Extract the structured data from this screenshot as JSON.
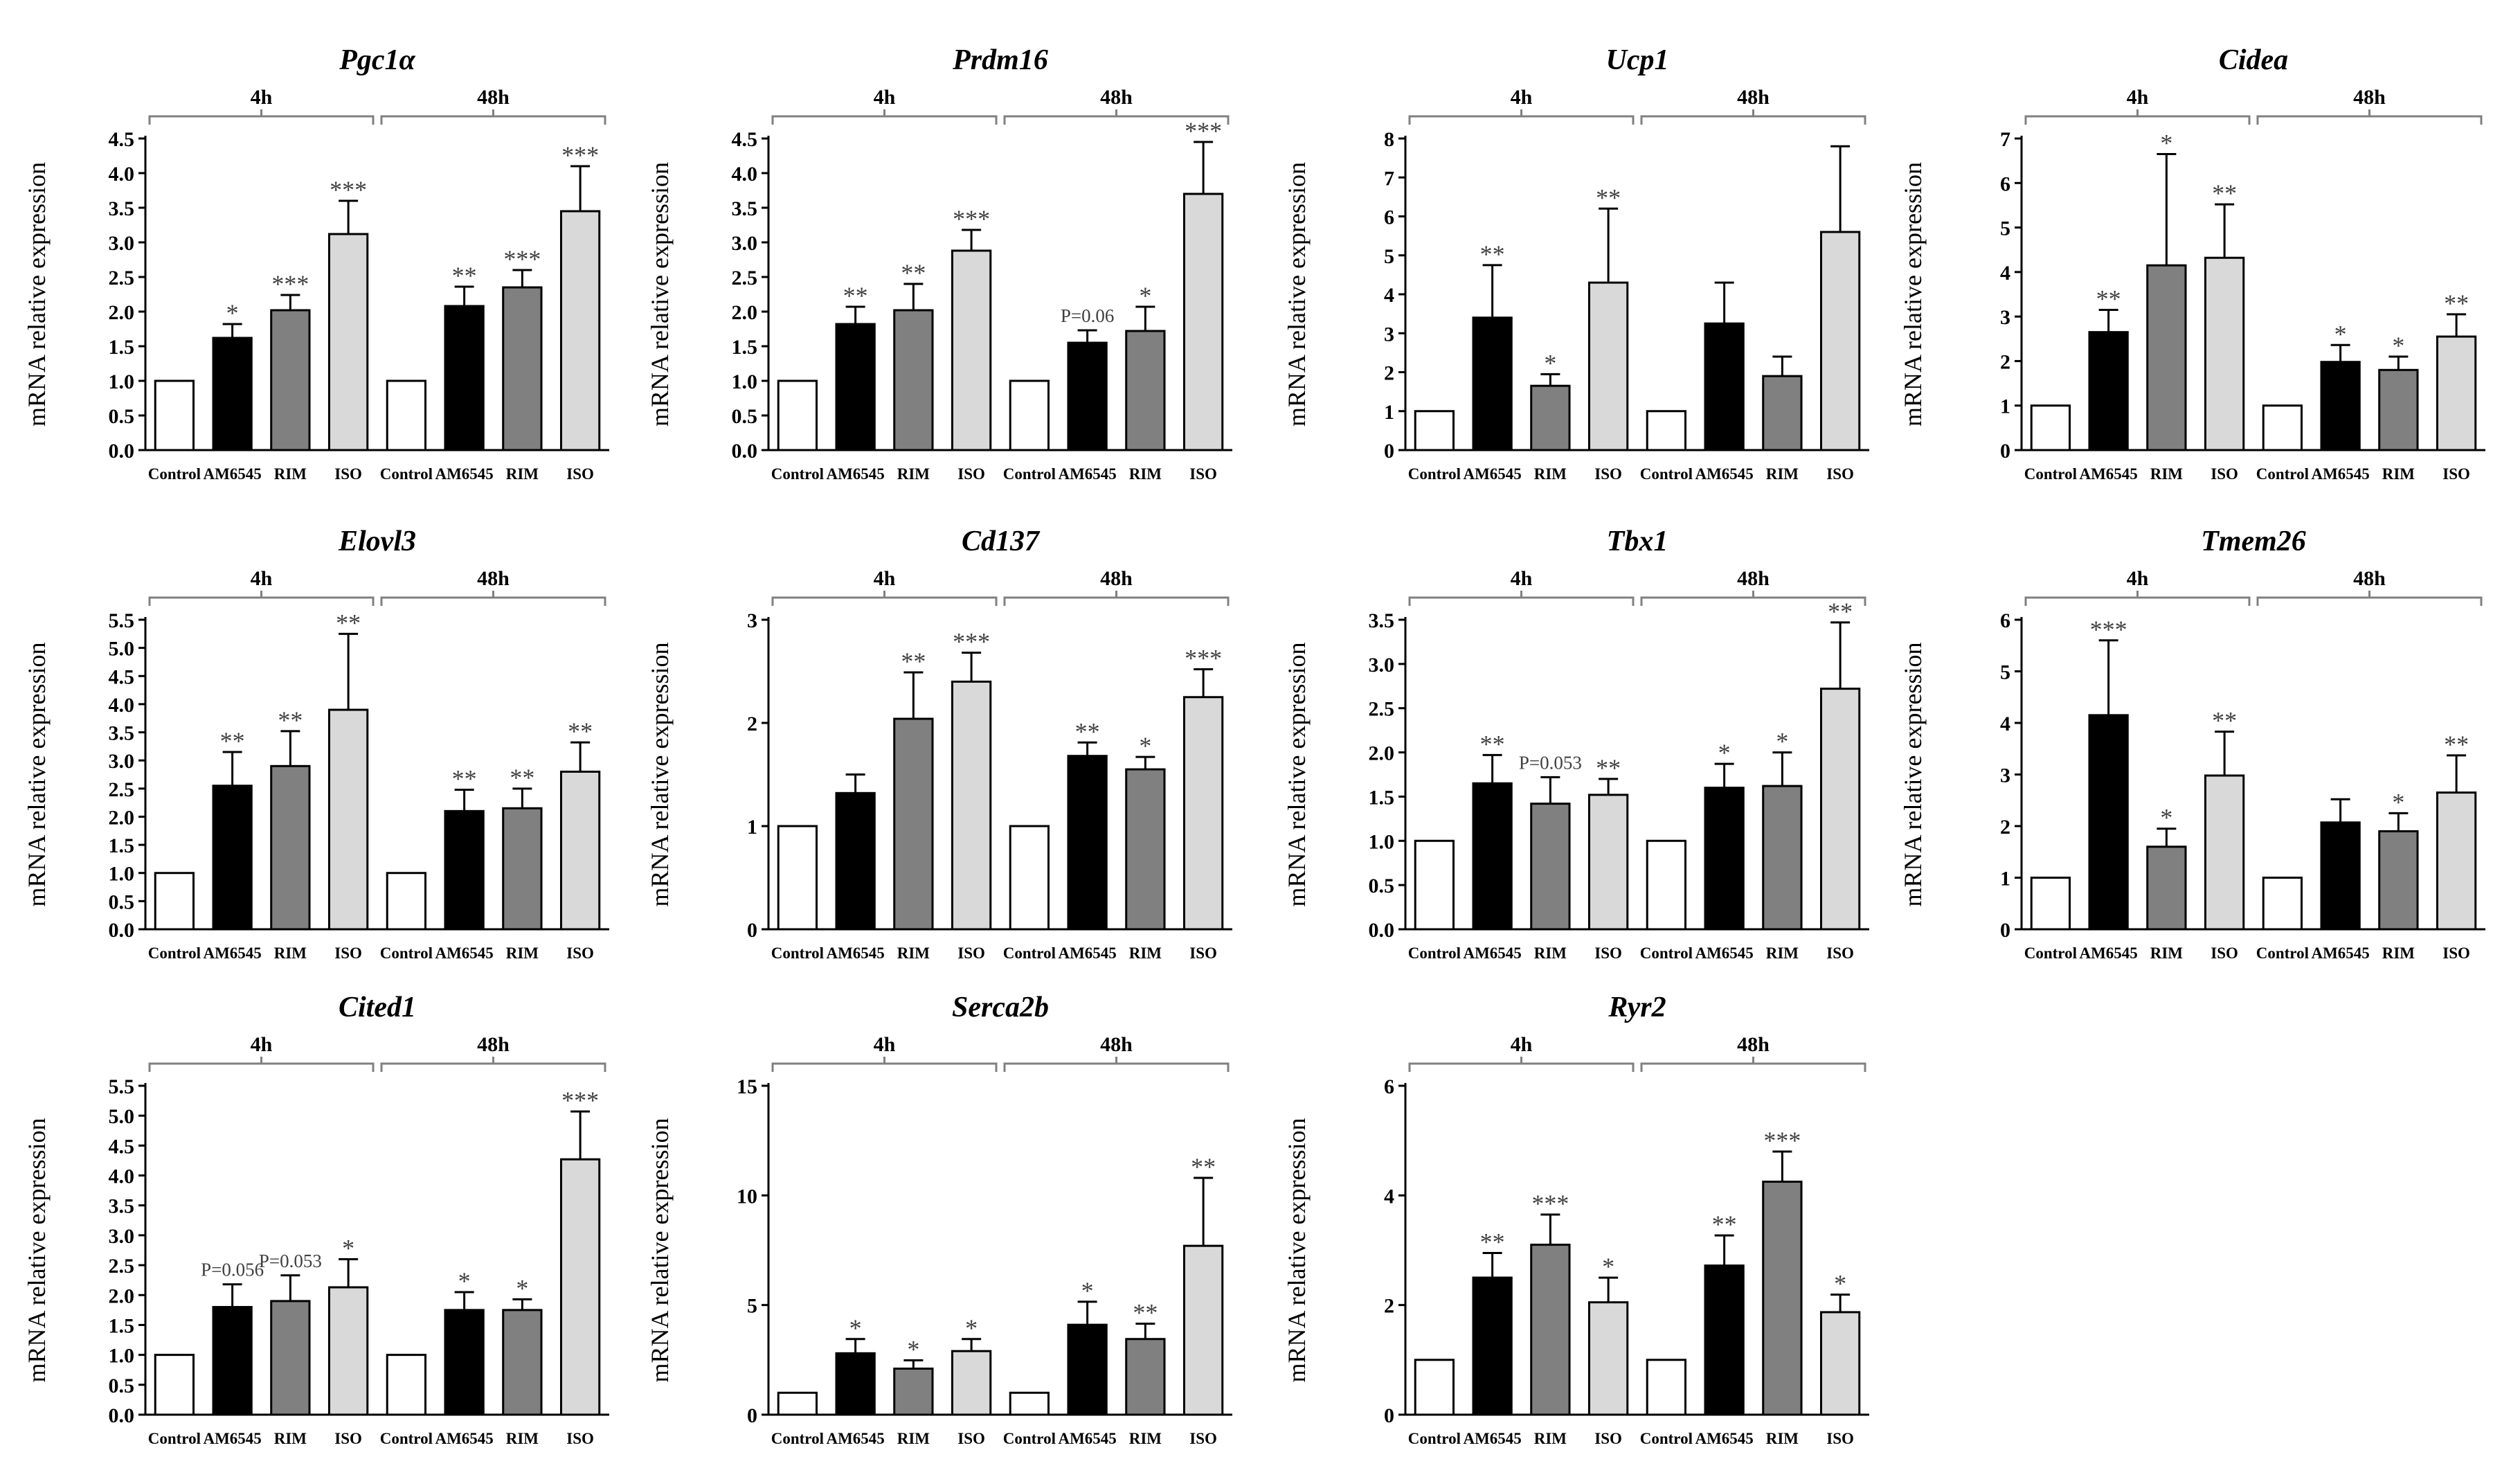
{
  "style": {
    "bar_colors": {
      "Control": "#ffffff",
      "AM6545": "#000000",
      "RIM": "#808080",
      "ISO": "#d9d9d9"
    },
    "axis_color": "#000000",
    "bracket_color": "#808080",
    "sig_color": "#404040"
  },
  "chart_data": [
    {
      "type": "bar",
      "title": "Pgc1α",
      "ylabel": "mRNA relative expression",
      "ylim": [
        0,
        4.5
      ],
      "yticks": [
        0,
        0.5,
        1.0,
        1.5,
        2.0,
        2.5,
        3.0,
        3.5,
        4.0,
        4.5
      ],
      "ytick_labels": [
        "0.0",
        "0.5",
        "1.0",
        "1.5",
        "2.0",
        "2.5",
        "3.0",
        "3.5",
        "4.0",
        "4.5"
      ],
      "groups": [
        "4h",
        "48h"
      ],
      "categories": [
        "Control",
        "AM6545",
        "RIM",
        "ISO",
        "Control",
        "AM6545",
        "RIM",
        "ISO"
      ],
      "values": [
        1.0,
        1.62,
        2.02,
        3.12,
        1.0,
        2.08,
        2.35,
        3.45
      ],
      "errors": [
        0,
        0.2,
        0.22,
        0.48,
        0,
        0.28,
        0.25,
        0.65
      ],
      "significance": [
        "",
        "*",
        "***",
        "***",
        "",
        "**",
        "***",
        "***"
      ]
    },
    {
      "type": "bar",
      "title": "Prdm16",
      "ylabel": "mRNA relative expression",
      "ylim": [
        0,
        4.5
      ],
      "yticks": [
        0,
        0.5,
        1.0,
        1.5,
        2.0,
        2.5,
        3.0,
        3.5,
        4.0,
        4.5
      ],
      "ytick_labels": [
        "0.0",
        "0.5",
        "1.0",
        "1.5",
        "2.0",
        "2.5",
        "3.0",
        "3.5",
        "4.0",
        "4.5"
      ],
      "groups": [
        "4h",
        "48h"
      ],
      "categories": [
        "Control",
        "AM6545",
        "RIM",
        "ISO",
        "Control",
        "AM6545",
        "RIM",
        "ISO"
      ],
      "values": [
        1.0,
        1.82,
        2.02,
        2.88,
        1.0,
        1.55,
        1.72,
        3.7
      ],
      "errors": [
        0,
        0.25,
        0.38,
        0.3,
        0,
        0.18,
        0.35,
        0.75
      ],
      "significance": [
        "",
        "**",
        "**",
        "***",
        "",
        "P=0.06",
        "*",
        "***"
      ]
    },
    {
      "type": "bar",
      "title": "Ucp1",
      "ylabel": "mRNA relative expression",
      "ylim": [
        0,
        8
      ],
      "yticks": [
        0,
        1,
        2,
        3,
        4,
        5,
        6,
        7,
        8
      ],
      "ytick_labels": [
        "0",
        "1",
        "2",
        "3",
        "4",
        "5",
        "6",
        "7",
        "8"
      ],
      "groups": [
        "4h",
        "48h"
      ],
      "categories": [
        "Control",
        "AM6545",
        "RIM",
        "ISO",
        "Control",
        "AM6545",
        "RIM",
        "ISO"
      ],
      "values": [
        1.0,
        3.4,
        1.65,
        4.3,
        1.0,
        3.25,
        1.9,
        5.6
      ],
      "errors": [
        0,
        1.35,
        0.3,
        1.9,
        0,
        1.05,
        0.5,
        2.2
      ],
      "significance": [
        "",
        "**",
        "*",
        "**",
        "",
        "",
        "",
        ""
      ]
    },
    {
      "type": "bar",
      "title": "Cidea",
      "ylabel": "mRNA relative expression",
      "ylim": [
        0,
        7
      ],
      "yticks": [
        0,
        1,
        2,
        3,
        4,
        5,
        6,
        7
      ],
      "ytick_labels": [
        "0",
        "1",
        "2",
        "3",
        "4",
        "5",
        "6",
        "7"
      ],
      "groups": [
        "4h",
        "48h"
      ],
      "categories": [
        "Control",
        "AM6545",
        "RIM",
        "ISO",
        "Control",
        "AM6545",
        "RIM",
        "ISO"
      ],
      "values": [
        1.0,
        2.65,
        4.15,
        4.32,
        1.0,
        1.98,
        1.8,
        2.55
      ],
      "errors": [
        0,
        0.5,
        2.5,
        1.2,
        0,
        0.38,
        0.3,
        0.5
      ],
      "significance": [
        "",
        "**",
        "*",
        "**",
        "",
        "*",
        "*",
        "**"
      ]
    },
    {
      "type": "bar",
      "title": "Elovl3",
      "ylabel": "mRNA relative expression",
      "ylim": [
        0,
        5.5
      ],
      "yticks": [
        0,
        0.5,
        1.0,
        1.5,
        2.0,
        2.5,
        3.0,
        3.5,
        4.0,
        4.5,
        5.0,
        5.5
      ],
      "ytick_labels": [
        "0.0",
        "0.5",
        "1.0",
        "1.5",
        "2.0",
        "2.5",
        "3.0",
        "3.5",
        "4.0",
        "4.5",
        "5.0",
        "5.5"
      ],
      "groups": [
        "4h",
        "48h"
      ],
      "categories": [
        "Control",
        "AM6545",
        "RIM",
        "ISO",
        "Control",
        "AM6545",
        "RIM",
        "ISO"
      ],
      "values": [
        1.0,
        2.55,
        2.9,
        3.9,
        1.0,
        2.1,
        2.15,
        2.8
      ],
      "errors": [
        0,
        0.6,
        0.62,
        1.35,
        0,
        0.38,
        0.35,
        0.52
      ],
      "significance": [
        "",
        "**",
        "**",
        "**",
        "",
        "**",
        "**",
        "**"
      ]
    },
    {
      "type": "bar",
      "title": "Cd137",
      "ylabel": "mRNA relative expression",
      "ylim": [
        0,
        3
      ],
      "yticks": [
        0,
        1,
        2,
        3
      ],
      "ytick_labels": [
        "0",
        "1",
        "2",
        "3"
      ],
      "groups": [
        "4h",
        "48h"
      ],
      "categories": [
        "Control",
        "AM6545",
        "RIM",
        "ISO",
        "Control",
        "AM6545",
        "RIM",
        "ISO"
      ],
      "values": [
        1.0,
        1.32,
        2.04,
        2.4,
        1.0,
        1.68,
        1.55,
        2.25
      ],
      "errors": [
        0,
        0.18,
        0.45,
        0.28,
        0,
        0.13,
        0.12,
        0.27
      ],
      "significance": [
        "",
        "",
        "**",
        "***",
        "",
        "**",
        "*",
        "***"
      ]
    },
    {
      "type": "bar",
      "title": "Tbx1",
      "ylabel": "mRNA relative expression",
      "ylim": [
        0,
        3.5
      ],
      "yticks": [
        0,
        0.5,
        1.0,
        1.5,
        2.0,
        2.5,
        3.0,
        3.5
      ],
      "ytick_labels": [
        "0.0",
        "0.5",
        "1.0",
        "1.5",
        "2.0",
        "2.5",
        "3.0",
        "3.5"
      ],
      "groups": [
        "4h",
        "48h"
      ],
      "categories": [
        "Control",
        "AM6545",
        "RIM",
        "ISO",
        "Control",
        "AM6545",
        "RIM",
        "ISO"
      ],
      "values": [
        1.0,
        1.65,
        1.42,
        1.52,
        1.0,
        1.6,
        1.62,
        2.72
      ],
      "errors": [
        0,
        0.32,
        0.3,
        0.18,
        0,
        0.27,
        0.38,
        0.75
      ],
      "significance": [
        "",
        "**",
        "P=0.053",
        "**",
        "",
        "*",
        "*",
        "**"
      ]
    },
    {
      "type": "bar",
      "title": "Tmem26",
      "ylabel": "mRNA relative expression",
      "ylim": [
        0,
        6
      ],
      "yticks": [
        0,
        1,
        2,
        3,
        4,
        5,
        6
      ],
      "ytick_labels": [
        "0",
        "1",
        "2",
        "3",
        "4",
        "5",
        "6"
      ],
      "groups": [
        "4h",
        "48h"
      ],
      "categories": [
        "Control",
        "AM6545",
        "RIM",
        "ISO",
        "Control",
        "AM6545",
        "RIM",
        "ISO"
      ],
      "values": [
        1.0,
        4.15,
        1.6,
        2.98,
        1.0,
        2.07,
        1.9,
        2.65
      ],
      "errors": [
        0,
        1.45,
        0.35,
        0.85,
        0,
        0.45,
        0.35,
        0.72
      ],
      "significance": [
        "",
        "***",
        "*",
        "**",
        "",
        "",
        "*",
        "**"
      ]
    },
    {
      "type": "bar",
      "title": "Cited1",
      "ylabel": "mRNA relative expression",
      "ylim": [
        0,
        5.5
      ],
      "yticks": [
        0,
        0.5,
        1.0,
        1.5,
        2.0,
        2.5,
        3.0,
        3.5,
        4.0,
        4.5,
        5.0,
        5.5
      ],
      "ytick_labels": [
        "0.0",
        "0.5",
        "1.0",
        "1.5",
        "2.0",
        "2.5",
        "3.0",
        "3.5",
        "4.0",
        "4.5",
        "5.0",
        "5.5"
      ],
      "groups": [
        "4h",
        "48h"
      ],
      "categories": [
        "Control",
        "AM6545",
        "RIM",
        "ISO",
        "Control",
        "AM6545",
        "RIM",
        "ISO"
      ],
      "values": [
        1.0,
        1.8,
        1.9,
        2.13,
        1.0,
        1.75,
        1.75,
        4.27
      ],
      "errors": [
        0,
        0.38,
        0.43,
        0.47,
        0,
        0.3,
        0.18,
        0.8
      ],
      "significance": [
        "",
        "P=0.056",
        "P=0.053",
        "*",
        "",
        "*",
        "*",
        "***"
      ]
    },
    {
      "type": "bar",
      "title": "Serca2b",
      "ylabel": "mRNA relative expression",
      "ylim": [
        0,
        15
      ],
      "yticks": [
        0,
        5,
        10,
        15
      ],
      "ytick_labels": [
        "0",
        "5",
        "10",
        "15"
      ],
      "groups": [
        "4h",
        "48h"
      ],
      "categories": [
        "Control",
        "AM6545",
        "RIM",
        "ISO",
        "Control",
        "AM6545",
        "RIM",
        "ISO"
      ],
      "values": [
        1.0,
        2.8,
        2.1,
        2.9,
        1.0,
        4.1,
        3.45,
        7.7
      ],
      "errors": [
        0,
        0.65,
        0.38,
        0.55,
        0,
        1.05,
        0.7,
        3.1
      ],
      "significance": [
        "",
        "*",
        "*",
        "*",
        "",
        "*",
        "**",
        "**"
      ]
    },
    {
      "type": "bar",
      "title": "Ryr2",
      "ylabel": "mRNA relative expression",
      "ylim": [
        0,
        6
      ],
      "yticks": [
        0,
        2,
        4,
        6
      ],
      "ytick_labels": [
        "0",
        "2",
        "4",
        "6"
      ],
      "groups": [
        "4h",
        "48h"
      ],
      "categories": [
        "Control",
        "AM6545",
        "RIM",
        "ISO",
        "Control",
        "AM6545",
        "RIM",
        "ISO"
      ],
      "values": [
        1.0,
        2.5,
        3.1,
        2.05,
        1.0,
        2.72,
        4.25,
        1.87
      ],
      "errors": [
        0,
        0.45,
        0.55,
        0.45,
        0,
        0.55,
        0.55,
        0.32
      ],
      "significance": [
        "",
        "**",
        "***",
        "*",
        "",
        "**",
        "***",
        "*"
      ]
    }
  ]
}
